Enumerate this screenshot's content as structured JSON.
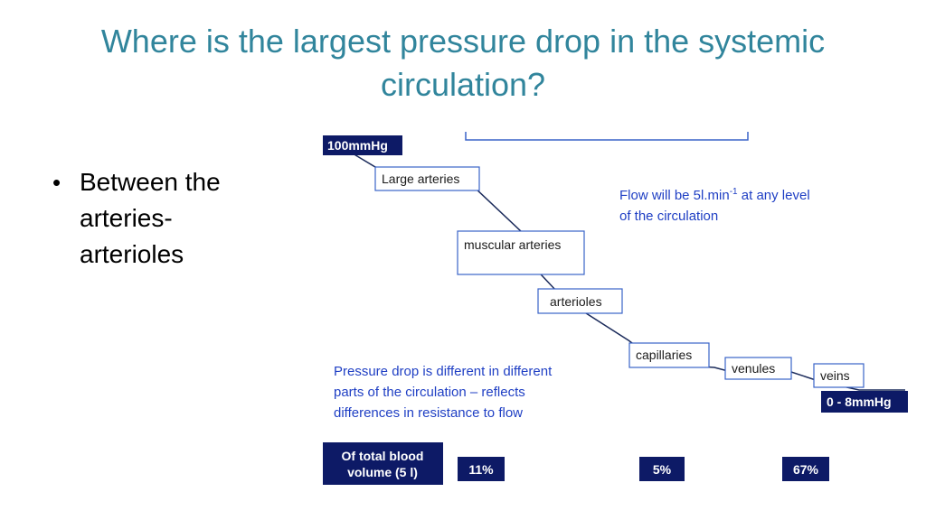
{
  "title": "Where is the largest pressure drop in the systemic circulation?",
  "bullets": [
    "Between the arteries-arterioles"
  ],
  "diagram": {
    "start_pressure": "100mmHg",
    "end_pressure": "0 - 8mmHg",
    "vessels": {
      "large_arteries": "Large arteries",
      "muscular_arteries": "muscular arteries",
      "arterioles": "arterioles",
      "capillaries": "capillaries",
      "venules": "venules",
      "veins": "veins"
    },
    "flow_note": {
      "prefix": "Flow will be 5l.min",
      "superscript": "-1",
      "suffix": " at any level",
      "line2": "of the circulation"
    },
    "pressure_note": [
      "Pressure drop is different in different",
      "parts of the circulation – reflects",
      "differences in resistance to flow"
    ],
    "blood_volume": {
      "label_line1": "Of total blood",
      "label_line2": "volume (5 l)",
      "arteries_pct": "11%",
      "capillaries_pct": "5%",
      "veins_pct": "67%"
    }
  },
  "colors": {
    "title": "#31859c",
    "navy": "#0d1a66",
    "box_border": "#3a63c8",
    "blue_text": "#1f3fc4",
    "line": "#1a2a5a"
  }
}
